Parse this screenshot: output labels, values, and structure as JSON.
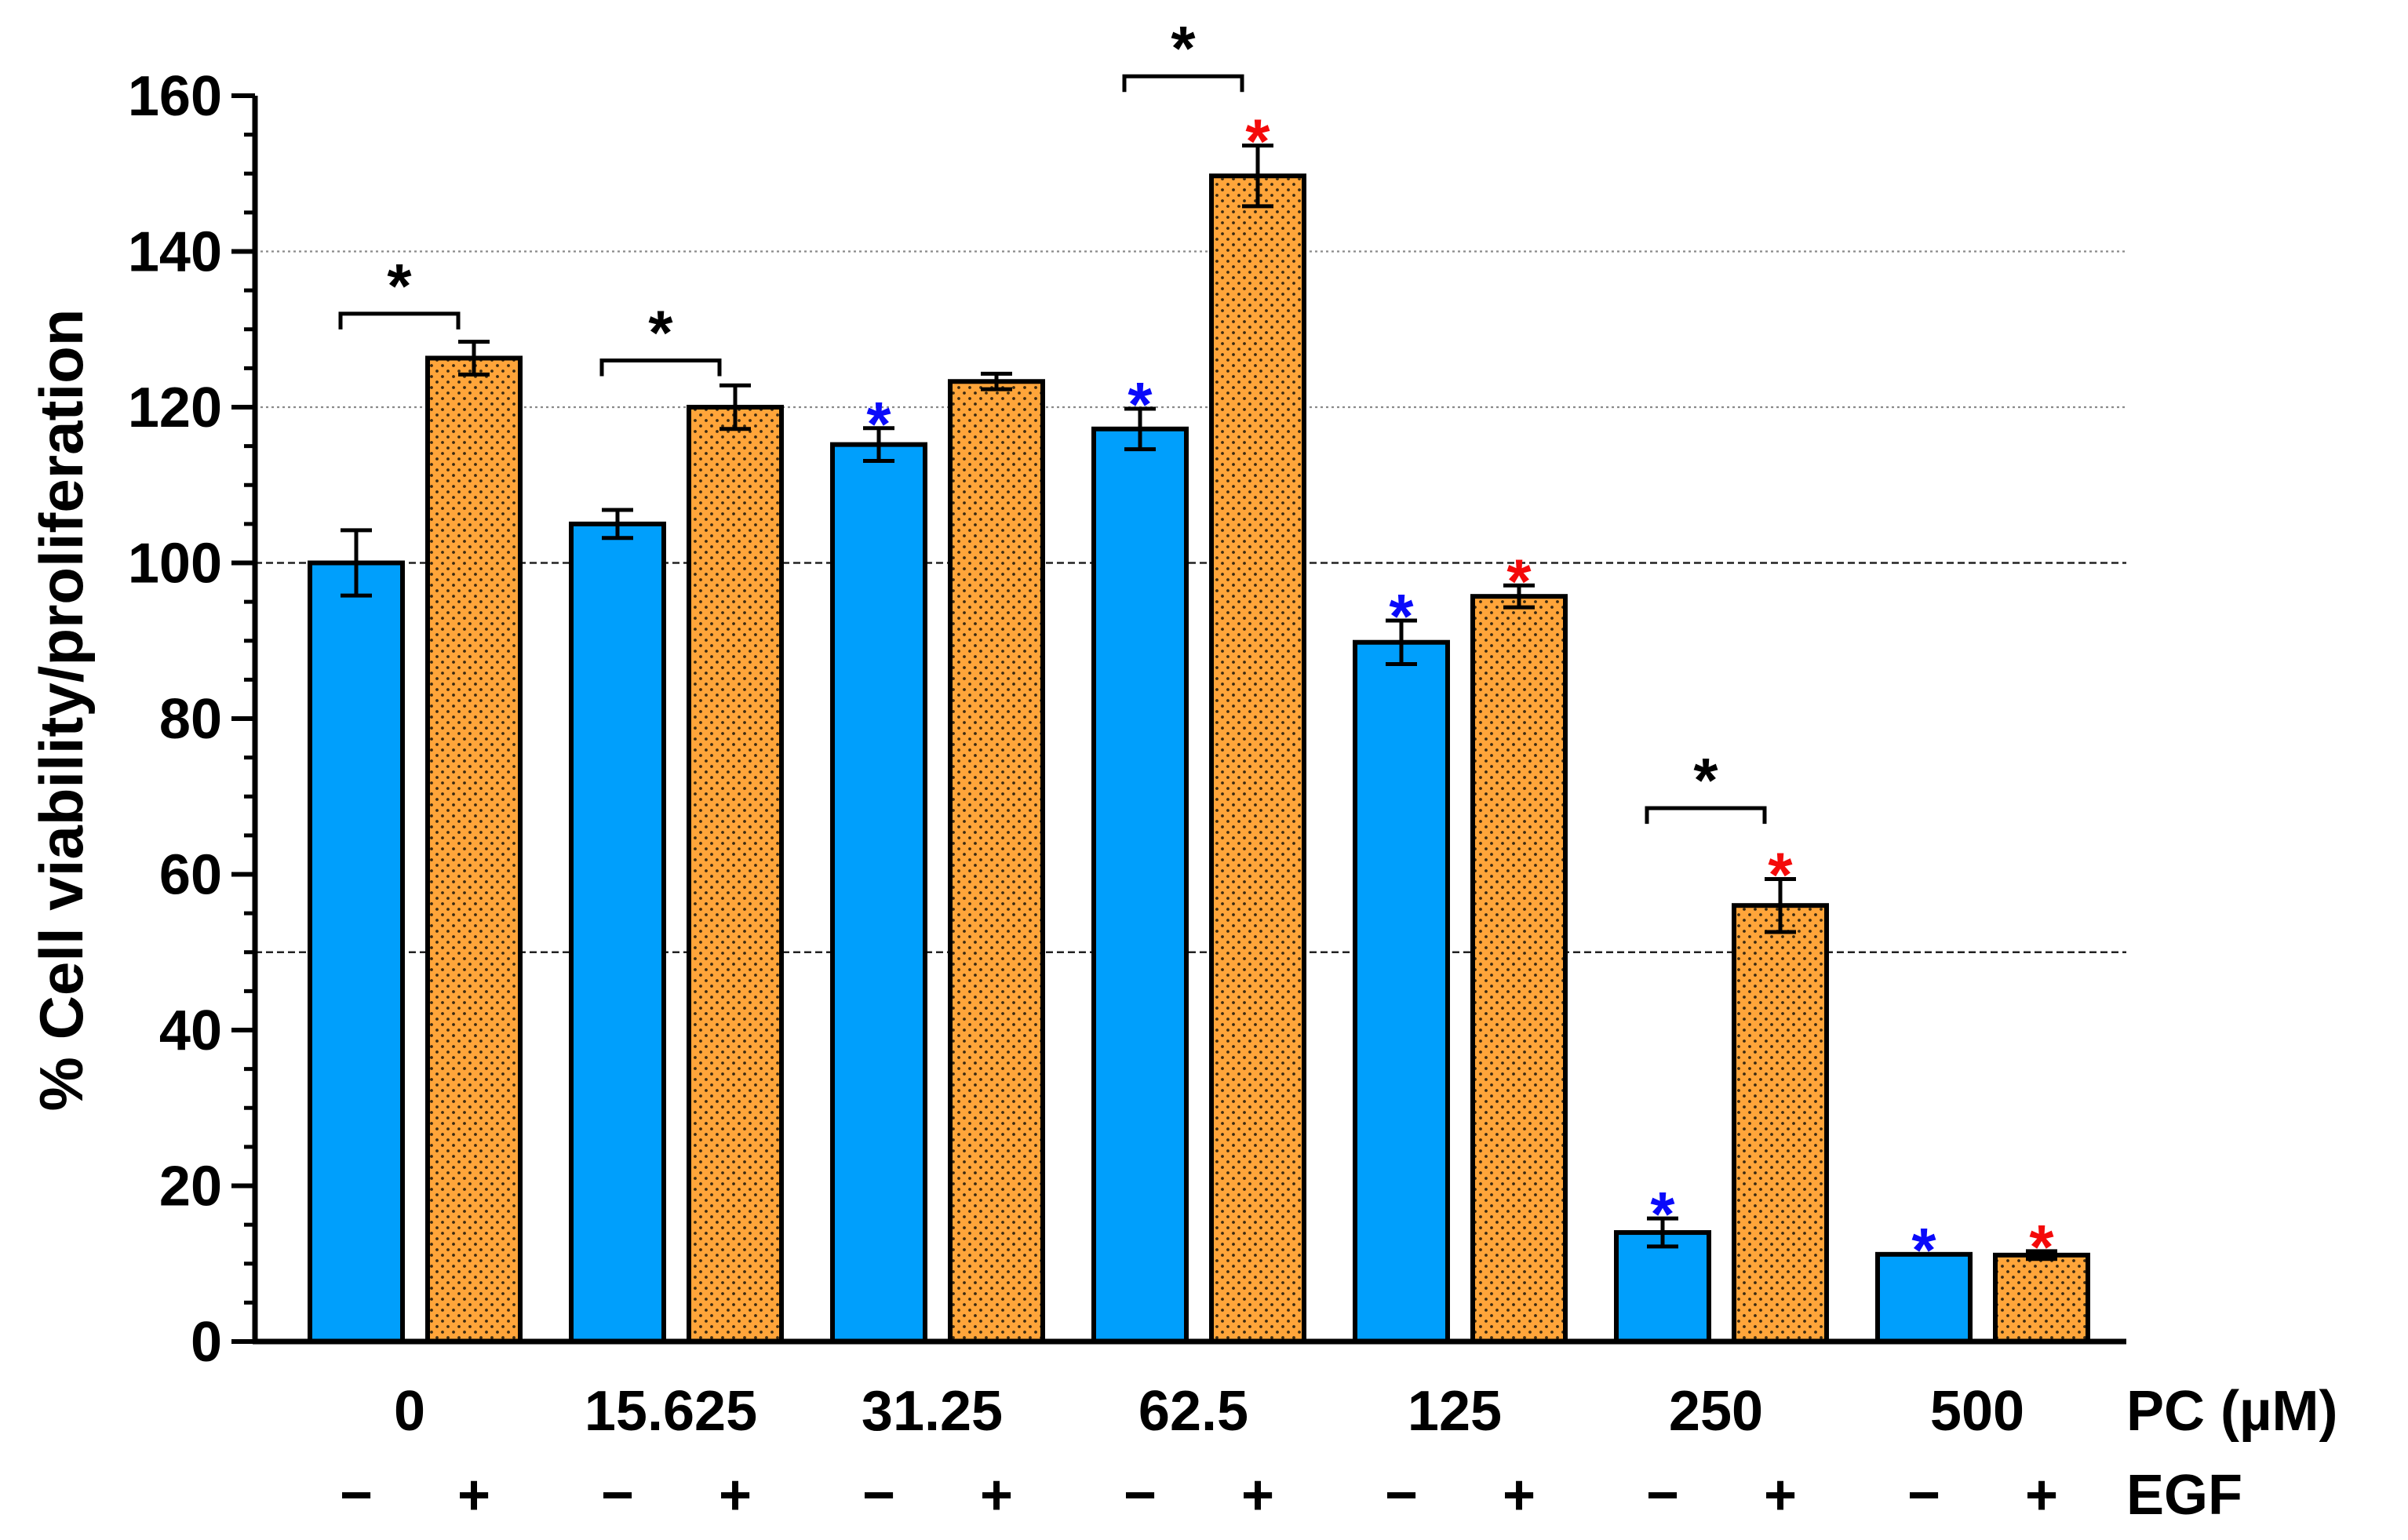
{
  "chart_data": {
    "type": "bar",
    "ylabel": "% Cell viability/proliferation",
    "ylim": [
      0,
      160
    ],
    "yticks": [
      0,
      20,
      40,
      60,
      80,
      100,
      120,
      140,
      160
    ],
    "minor_tick_step": 5,
    "reference_lines": [
      {
        "y": 50,
        "style": "dashed"
      },
      {
        "y": 100,
        "style": "dashed"
      },
      {
        "y": 120,
        "style": "dotted"
      },
      {
        "y": 140,
        "style": "dotted"
      }
    ],
    "categories": [
      "0",
      "15.625",
      "31.25",
      "62.5",
      "125",
      "250",
      "500"
    ],
    "x_row_label": "PC (µM)",
    "egf_row_label": "EGF",
    "egf_symbols": {
      "minus": "−",
      "plus": "+"
    },
    "series": [
      {
        "name": "EGF −",
        "color": "#009ffc",
        "pattern": "none",
        "values": [
          100,
          105,
          115.2,
          117.2,
          89.8,
          14.0,
          11.2
        ],
        "errors": [
          4.2,
          1.8,
          2.1,
          2.6,
          2.8,
          1.8,
          0.0
        ],
        "significance": [
          "",
          "",
          "*",
          "*",
          "*",
          "*",
          "*"
        ],
        "significance_color": "#0a0afa"
      },
      {
        "name": "EGF +",
        "color": "#ffa53a",
        "pattern": "dotted",
        "values": [
          126.3,
          120.0,
          123.3,
          149.7,
          95.7,
          56.0,
          11.1
        ],
        "errors": [
          2.1,
          2.8,
          1.0,
          3.9,
          1.4,
          3.4,
          0.5
        ],
        "significance": [
          "",
          "",
          "",
          "*",
          "*",
          "*",
          "*"
        ],
        "significance_color": "#f40a0a"
      }
    ],
    "comparison_brackets": [
      {
        "category_index": 0,
        "label": "*",
        "y": 132
      },
      {
        "category_index": 1,
        "label": "*",
        "y": 126
      },
      {
        "category_index": 3,
        "label": "*",
        "y": 162.5
      },
      {
        "category_index": 5,
        "label": "*",
        "y": 68.5
      }
    ],
    "comparison_color": "#000000"
  }
}
